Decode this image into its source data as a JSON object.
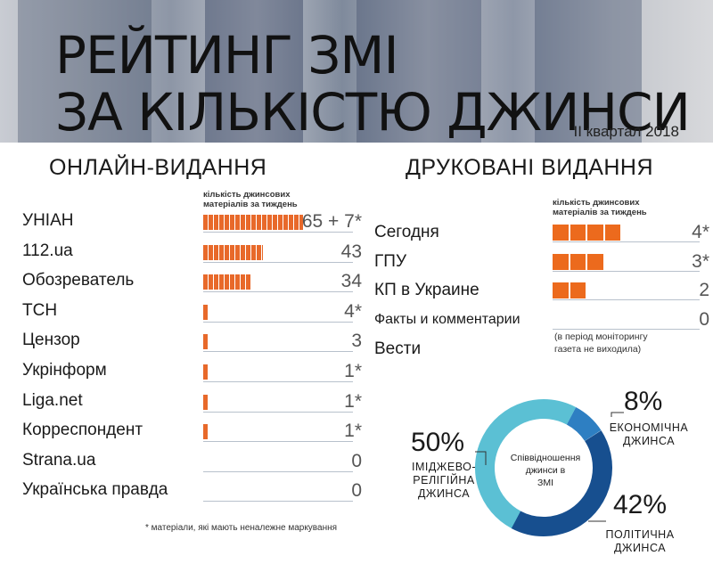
{
  "header": {
    "title_line1": "РЕЙТИНГ ЗМІ",
    "title_line2": "ЗА КІЛЬКІСТЮ ДЖИНСИ",
    "subtitle": "ІІ квартал 2018"
  },
  "online": {
    "heading": "ОНЛАЙН-ВИДАННЯ",
    "unit_note_line1": "кількість джинсових",
    "unit_note_line2": "матеріалів за тиждень"
  },
  "print": {
    "heading": "ДРУКОВАНІ ВИДАННЯ",
    "unit_note_line1": "кількість джинсових",
    "unit_note_line2": "матеріалів за тиждень",
    "vesti_note_line1": "(в період моніторингу",
    "vesti_note_line2": "газета не виходила)"
  },
  "footnote": "* матеріали, які мають неналежне маркування",
  "colors": {
    "bar_orange": "#ec6a1d",
    "ring_light": "#5bc0d4",
    "ring_mid": "#2e7fc2",
    "ring_dark": "#174f8f"
  },
  "chart_data": [
    {
      "type": "bar",
      "title": "ОНЛАЙН-ВИДАННЯ",
      "categories": [
        "УНІАН",
        "112.ua",
        "Обозреватель",
        "ТСН",
        "Цензор",
        "Укрінформ",
        "Liga.net",
        "Корреспондент",
        "Strana.ua",
        "Українська правда"
      ],
      "values": [
        72,
        43,
        34,
        4,
        3,
        1,
        1,
        1,
        0,
        0
      ],
      "value_labels": [
        "65 + 7*",
        "43",
        "34",
        "4*",
        "3",
        "1*",
        "1*",
        "1*",
        "0",
        "0"
      ],
      "orientation": "horizontal"
    },
    {
      "type": "bar",
      "title": "ДРУКОВАНІ ВИДАННЯ",
      "categories": [
        "Сегодня",
        "ГПУ",
        "КП в Украине",
        "Факты и комментарии",
        "Вести"
      ],
      "values": [
        4,
        3,
        2,
        0,
        null
      ],
      "value_labels": [
        "4*",
        "3*",
        "2",
        "0",
        ""
      ],
      "orientation": "horizontal"
    },
    {
      "type": "pie",
      "center_label_line1": "Співвідношення",
      "center_label_line2": "джинси в",
      "center_label_line3": "ЗМІ",
      "slices": [
        {
          "pct_label": "8%",
          "label_line1": "ЕКОНОМІЧНА",
          "label_line2": "ДЖИНСА",
          "label_line3": "",
          "value": 8
        },
        {
          "pct_label": "42%",
          "label_line1": "ПОЛІТИЧНА",
          "label_line2": "ДЖИНСА",
          "label_line3": "",
          "value": 42
        },
        {
          "pct_label": "50%",
          "label_line1": "ІМІДЖЕВО-",
          "label_line2": "РЕЛІГІЙНА",
          "label_line3": "ДЖИНСА",
          "value": 50
        }
      ]
    }
  ]
}
